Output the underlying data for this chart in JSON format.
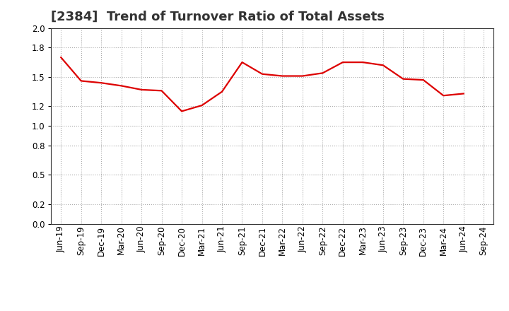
{
  "title": "[2384]  Trend of Turnover Ratio of Total Assets",
  "x_labels": [
    "Jun-19",
    "Sep-19",
    "Dec-19",
    "Mar-20",
    "Jun-20",
    "Sep-20",
    "Dec-20",
    "Mar-21",
    "Jun-21",
    "Sep-21",
    "Dec-21",
    "Mar-22",
    "Jun-22",
    "Sep-22",
    "Dec-22",
    "Mar-23",
    "Jun-23",
    "Sep-23",
    "Dec-23",
    "Mar-24",
    "Jun-24",
    "Sep-24"
  ],
  "y_values": [
    1.7,
    1.46,
    1.44,
    1.41,
    1.37,
    1.36,
    1.15,
    1.21,
    1.35,
    1.65,
    1.53,
    1.51,
    1.51,
    1.54,
    1.65,
    1.65,
    1.62,
    1.48,
    1.47,
    1.31,
    1.33,
    null
  ],
  "line_color": "#dd0000",
  "line_width": 1.6,
  "ylim": [
    0.0,
    2.0
  ],
  "yticks": [
    0.0,
    0.2,
    0.5,
    0.8,
    1.0,
    1.2,
    1.5,
    1.8,
    2.0
  ],
  "background_color": "#ffffff",
  "grid_color": "#aaaaaa",
  "title_fontsize": 13,
  "tick_fontsize": 8.5,
  "title_color": "#333333"
}
